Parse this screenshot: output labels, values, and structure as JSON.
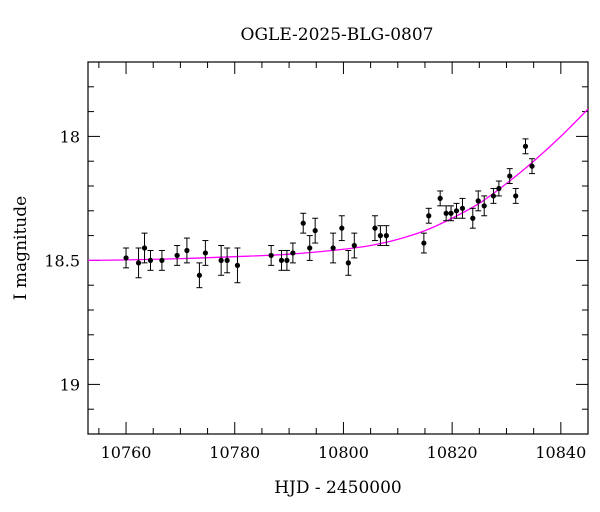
{
  "chart_data": {
    "type": "scatter",
    "title": "OGLE-2025-BLG-0807",
    "xlabel": "HJD - 2450000",
    "ylabel": "I magnitude",
    "xlim": [
      10753,
      10845
    ],
    "ylim": [
      19.2,
      17.7
    ],
    "y_inverted": true,
    "grid": false,
    "x_ticks": [
      10760,
      10780,
      10800,
      10820,
      10840
    ],
    "x_tick_labels": [
      "10760",
      "10780",
      "10800",
      "10820",
      "10840"
    ],
    "y_ticks": [
      18,
      18.5,
      19
    ],
    "y_tick_labels": [
      "18",
      "18.5",
      "19"
    ],
    "colors": {
      "points": "#000000",
      "model": "#ff00ff",
      "axes": "#000000"
    },
    "series": [
      {
        "kind": "points_with_errorbars",
        "points": [
          [
            10760.0,
            18.49,
            0.04
          ],
          [
            10762.3,
            18.51,
            0.06
          ],
          [
            10763.4,
            18.45,
            0.06
          ],
          [
            10764.5,
            18.5,
            0.04
          ],
          [
            10766.6,
            18.5,
            0.04
          ],
          [
            10769.4,
            18.48,
            0.04
          ],
          [
            10771.2,
            18.46,
            0.05
          ],
          [
            10773.5,
            18.56,
            0.05
          ],
          [
            10774.6,
            18.47,
            0.05
          ],
          [
            10777.5,
            18.5,
            0.06
          ],
          [
            10778.6,
            18.5,
            0.05
          ],
          [
            10780.5,
            18.52,
            0.07
          ],
          [
            10786.7,
            18.48,
            0.04
          ],
          [
            10788.6,
            18.5,
            0.04
          ],
          [
            10789.6,
            18.5,
            0.04
          ],
          [
            10790.7,
            18.47,
            0.04
          ],
          [
            10792.6,
            18.35,
            0.04
          ],
          [
            10793.8,
            18.45,
            0.05
          ],
          [
            10794.8,
            18.38,
            0.05
          ],
          [
            10798.1,
            18.45,
            0.06
          ],
          [
            10799.7,
            18.37,
            0.05
          ],
          [
            10800.9,
            18.51,
            0.05
          ],
          [
            10802.0,
            18.44,
            0.05
          ],
          [
            10805.8,
            18.37,
            0.05
          ],
          [
            10806.8,
            18.4,
            0.04
          ],
          [
            10807.9,
            18.4,
            0.04
          ],
          [
            10814.8,
            18.43,
            0.04
          ],
          [
            10815.7,
            18.32,
            0.03
          ],
          [
            10817.8,
            18.25,
            0.03
          ],
          [
            10818.9,
            18.31,
            0.03
          ],
          [
            10819.8,
            18.31,
            0.03
          ],
          [
            10820.8,
            18.3,
            0.03
          ],
          [
            10821.9,
            18.29,
            0.04
          ],
          [
            10823.8,
            18.33,
            0.04
          ],
          [
            10824.8,
            18.26,
            0.04
          ],
          [
            10825.9,
            18.28,
            0.04
          ],
          [
            10827.6,
            18.24,
            0.03
          ],
          [
            10828.6,
            18.21,
            0.03
          ],
          [
            10830.6,
            18.16,
            0.03
          ],
          [
            10831.7,
            18.24,
            0.03
          ],
          [
            10833.5,
            18.04,
            0.03
          ],
          [
            10834.7,
            18.12,
            0.03
          ]
        ]
      },
      {
        "kind": "model_curve",
        "points": [
          [
            10753,
            18.5
          ],
          [
            10760,
            18.498
          ],
          [
            10770,
            18.493
          ],
          [
            10780,
            18.485
          ],
          [
            10790,
            18.475
          ],
          [
            10800,
            18.455
          ],
          [
            10805,
            18.44
          ],
          [
            10810,
            18.415
          ],
          [
            10815,
            18.38
          ],
          [
            10820,
            18.33
          ],
          [
            10825,
            18.27
          ],
          [
            10830,
            18.19
          ],
          [
            10835,
            18.1
          ],
          [
            10840,
            18.0
          ],
          [
            10845,
            17.89
          ]
        ]
      }
    ]
  }
}
